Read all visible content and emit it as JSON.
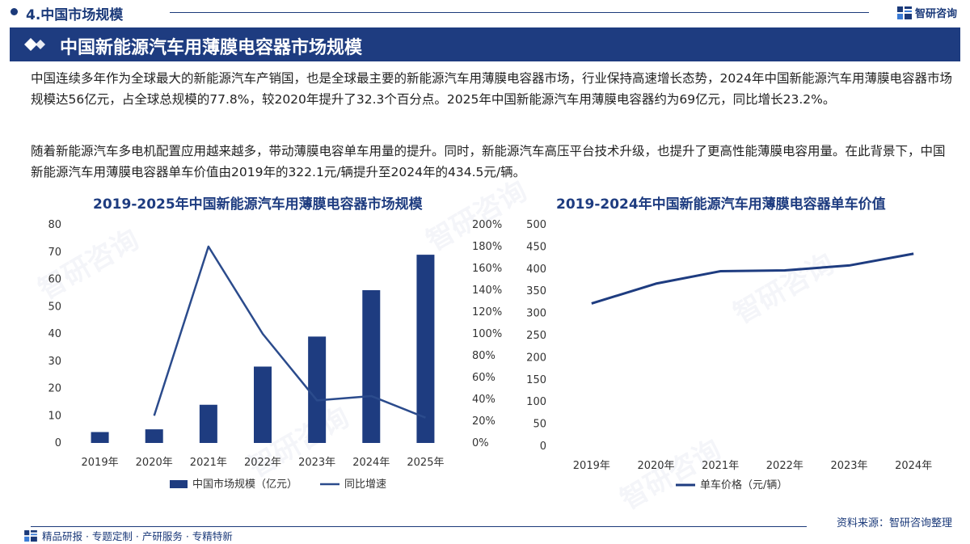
{
  "header": {
    "section_title": "4.中国市场规模",
    "brand_name": "智研咨询"
  },
  "banner": {
    "title": "中国新能源汽车用薄膜电容器市场规模"
  },
  "paragraphs": [
    "中国连续多年作为全球最大的新能源汽车产销国，也是全球最主要的新能源汽车用薄膜电容器市场，行业保持高速增长态势，2024年中国新能源汽车用薄膜电容器市场规模达56亿元，占全球总规模的77.8%，较2020年提升了32.3个百分点。2025年中国新能源汽车用薄膜电容器约为69亿元，同比增长23.2%。",
    "随着新能源汽车多电机配置应用越来越多，带动薄膜电容单车用量的提升。同时，新能源汽车高压平台技术升级，也提升了更高性能薄膜电容用量。在此背景下，中国新能源汽车用薄膜电容器单车价值由2019年的322.1元/辆提升至2024年的434.5元/辆。"
  ],
  "chart_data": [
    {
      "type": "bar",
      "title": "2019-2025年中国新能源汽车用薄膜电容器市场规模",
      "categories": [
        "2019年",
        "2020年",
        "2021年",
        "2022年",
        "2023年",
        "2024年",
        "2025年"
      ],
      "series": [
        {
          "name": "中国市场规模（亿元）",
          "type": "bar",
          "axis": "left",
          "color": "#1e3c80",
          "values": [
            4,
            5,
            14,
            28,
            39,
            56,
            69
          ]
        },
        {
          "name": "同比增速",
          "type": "line",
          "axis": "right",
          "color": "#2b4b8c",
          "values": [
            null,
            25,
            180,
            100,
            39,
            43,
            23.2
          ]
        }
      ],
      "y_left": {
        "min": 0,
        "max": 80,
        "ticks": [
          "0",
          "10",
          "20",
          "30",
          "40",
          "50",
          "60",
          "70",
          "80"
        ]
      },
      "y_right": {
        "min": 0,
        "max": 200,
        "ticks": [
          "0%",
          "20%",
          "40%",
          "60%",
          "80%",
          "100%",
          "120%",
          "140%",
          "160%",
          "180%",
          "200%"
        ]
      },
      "grid": false,
      "legend": "bottom"
    },
    {
      "type": "line",
      "title": "2019-2024年中国新能源汽车用薄膜电容器单车价值",
      "categories": [
        "2019年",
        "2020年",
        "2021年",
        "2022年",
        "2023年",
        "2024年"
      ],
      "series": [
        {
          "name": "单车价格（元/辆）",
          "color": "#1e3c80",
          "values": [
            322.1,
            367,
            395,
            397,
            408,
            434.5
          ]
        }
      ],
      "y": {
        "min": 0,
        "max": 500,
        "ticks": [
          "0",
          "50",
          "100",
          "150",
          "200",
          "250",
          "300",
          "350",
          "400",
          "450",
          "500"
        ]
      },
      "grid": false,
      "legend": "bottom"
    }
  ],
  "footer": {
    "tagline": "精品研报 · 专题定制 · 产研服务 · 专精特新",
    "source": "资料来源：智研咨询整理"
  }
}
